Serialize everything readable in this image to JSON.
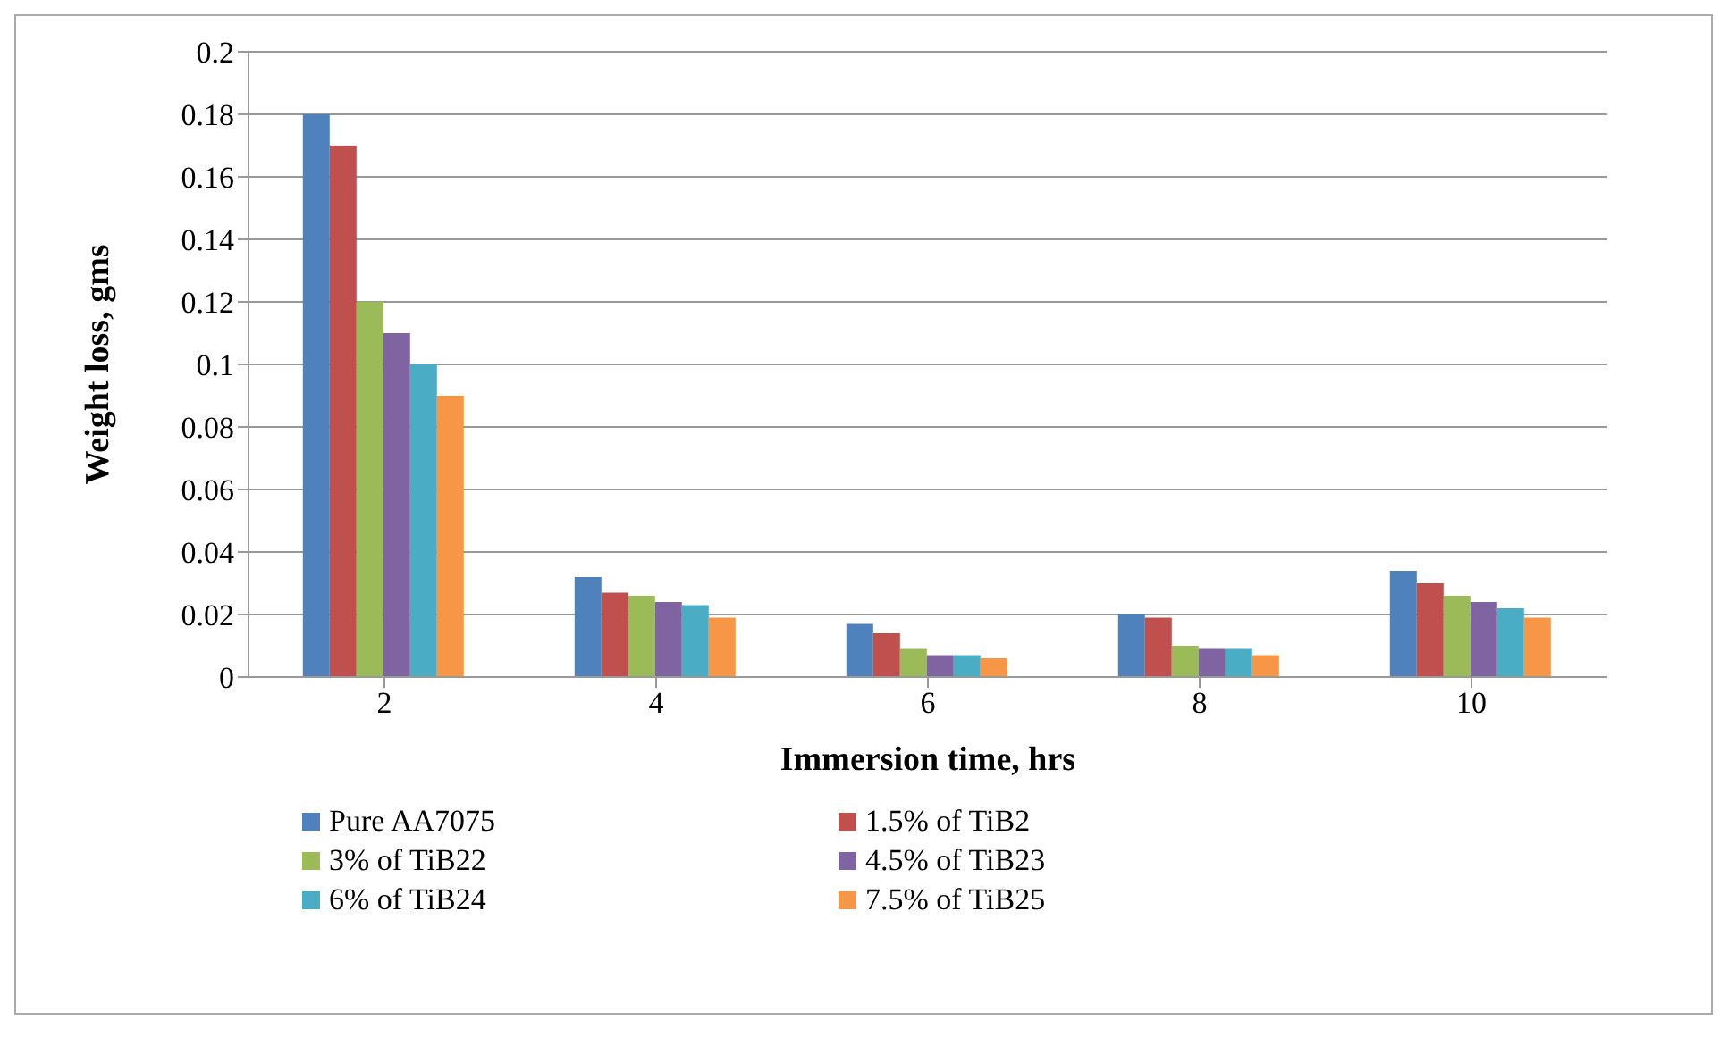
{
  "chart_data": {
    "type": "bar",
    "xlabel": "Immersion time, hrs",
    "ylabel": "Weight loss, gms",
    "categories": [
      "2",
      "4",
      "6",
      "8",
      "10"
    ],
    "series": [
      {
        "name": "Pure AA7075",
        "color": "#4f81bd",
        "values": [
          0.18,
          0.032,
          0.017,
          0.02,
          0.034
        ]
      },
      {
        "name": "1.5% of TiB2",
        "color": "#c0504d",
        "values": [
          0.17,
          0.027,
          0.014,
          0.019,
          0.03
        ]
      },
      {
        "name": "3% of TiB22",
        "color": "#9bbb59",
        "values": [
          0.12,
          0.026,
          0.009,
          0.01,
          0.026
        ]
      },
      {
        "name": "4.5% of TiB23",
        "color": "#8064a2",
        "values": [
          0.11,
          0.024,
          0.007,
          0.009,
          0.024
        ]
      },
      {
        "name": "6% of TiB24",
        "color": "#4bacc6",
        "values": [
          0.1,
          0.023,
          0.007,
          0.009,
          0.022
        ]
      },
      {
        "name": "7.5% of TiB25",
        "color": "#f79646",
        "values": [
          0.09,
          0.019,
          0.006,
          0.007,
          0.019
        ]
      }
    ],
    "ylim": [
      0,
      0.2
    ],
    "yticks": [
      0,
      0.02,
      0.04,
      0.06,
      0.08,
      0.1,
      0.12,
      0.14,
      0.16,
      0.18,
      0.2
    ],
    "grid": "y",
    "legend": "bottom"
  }
}
